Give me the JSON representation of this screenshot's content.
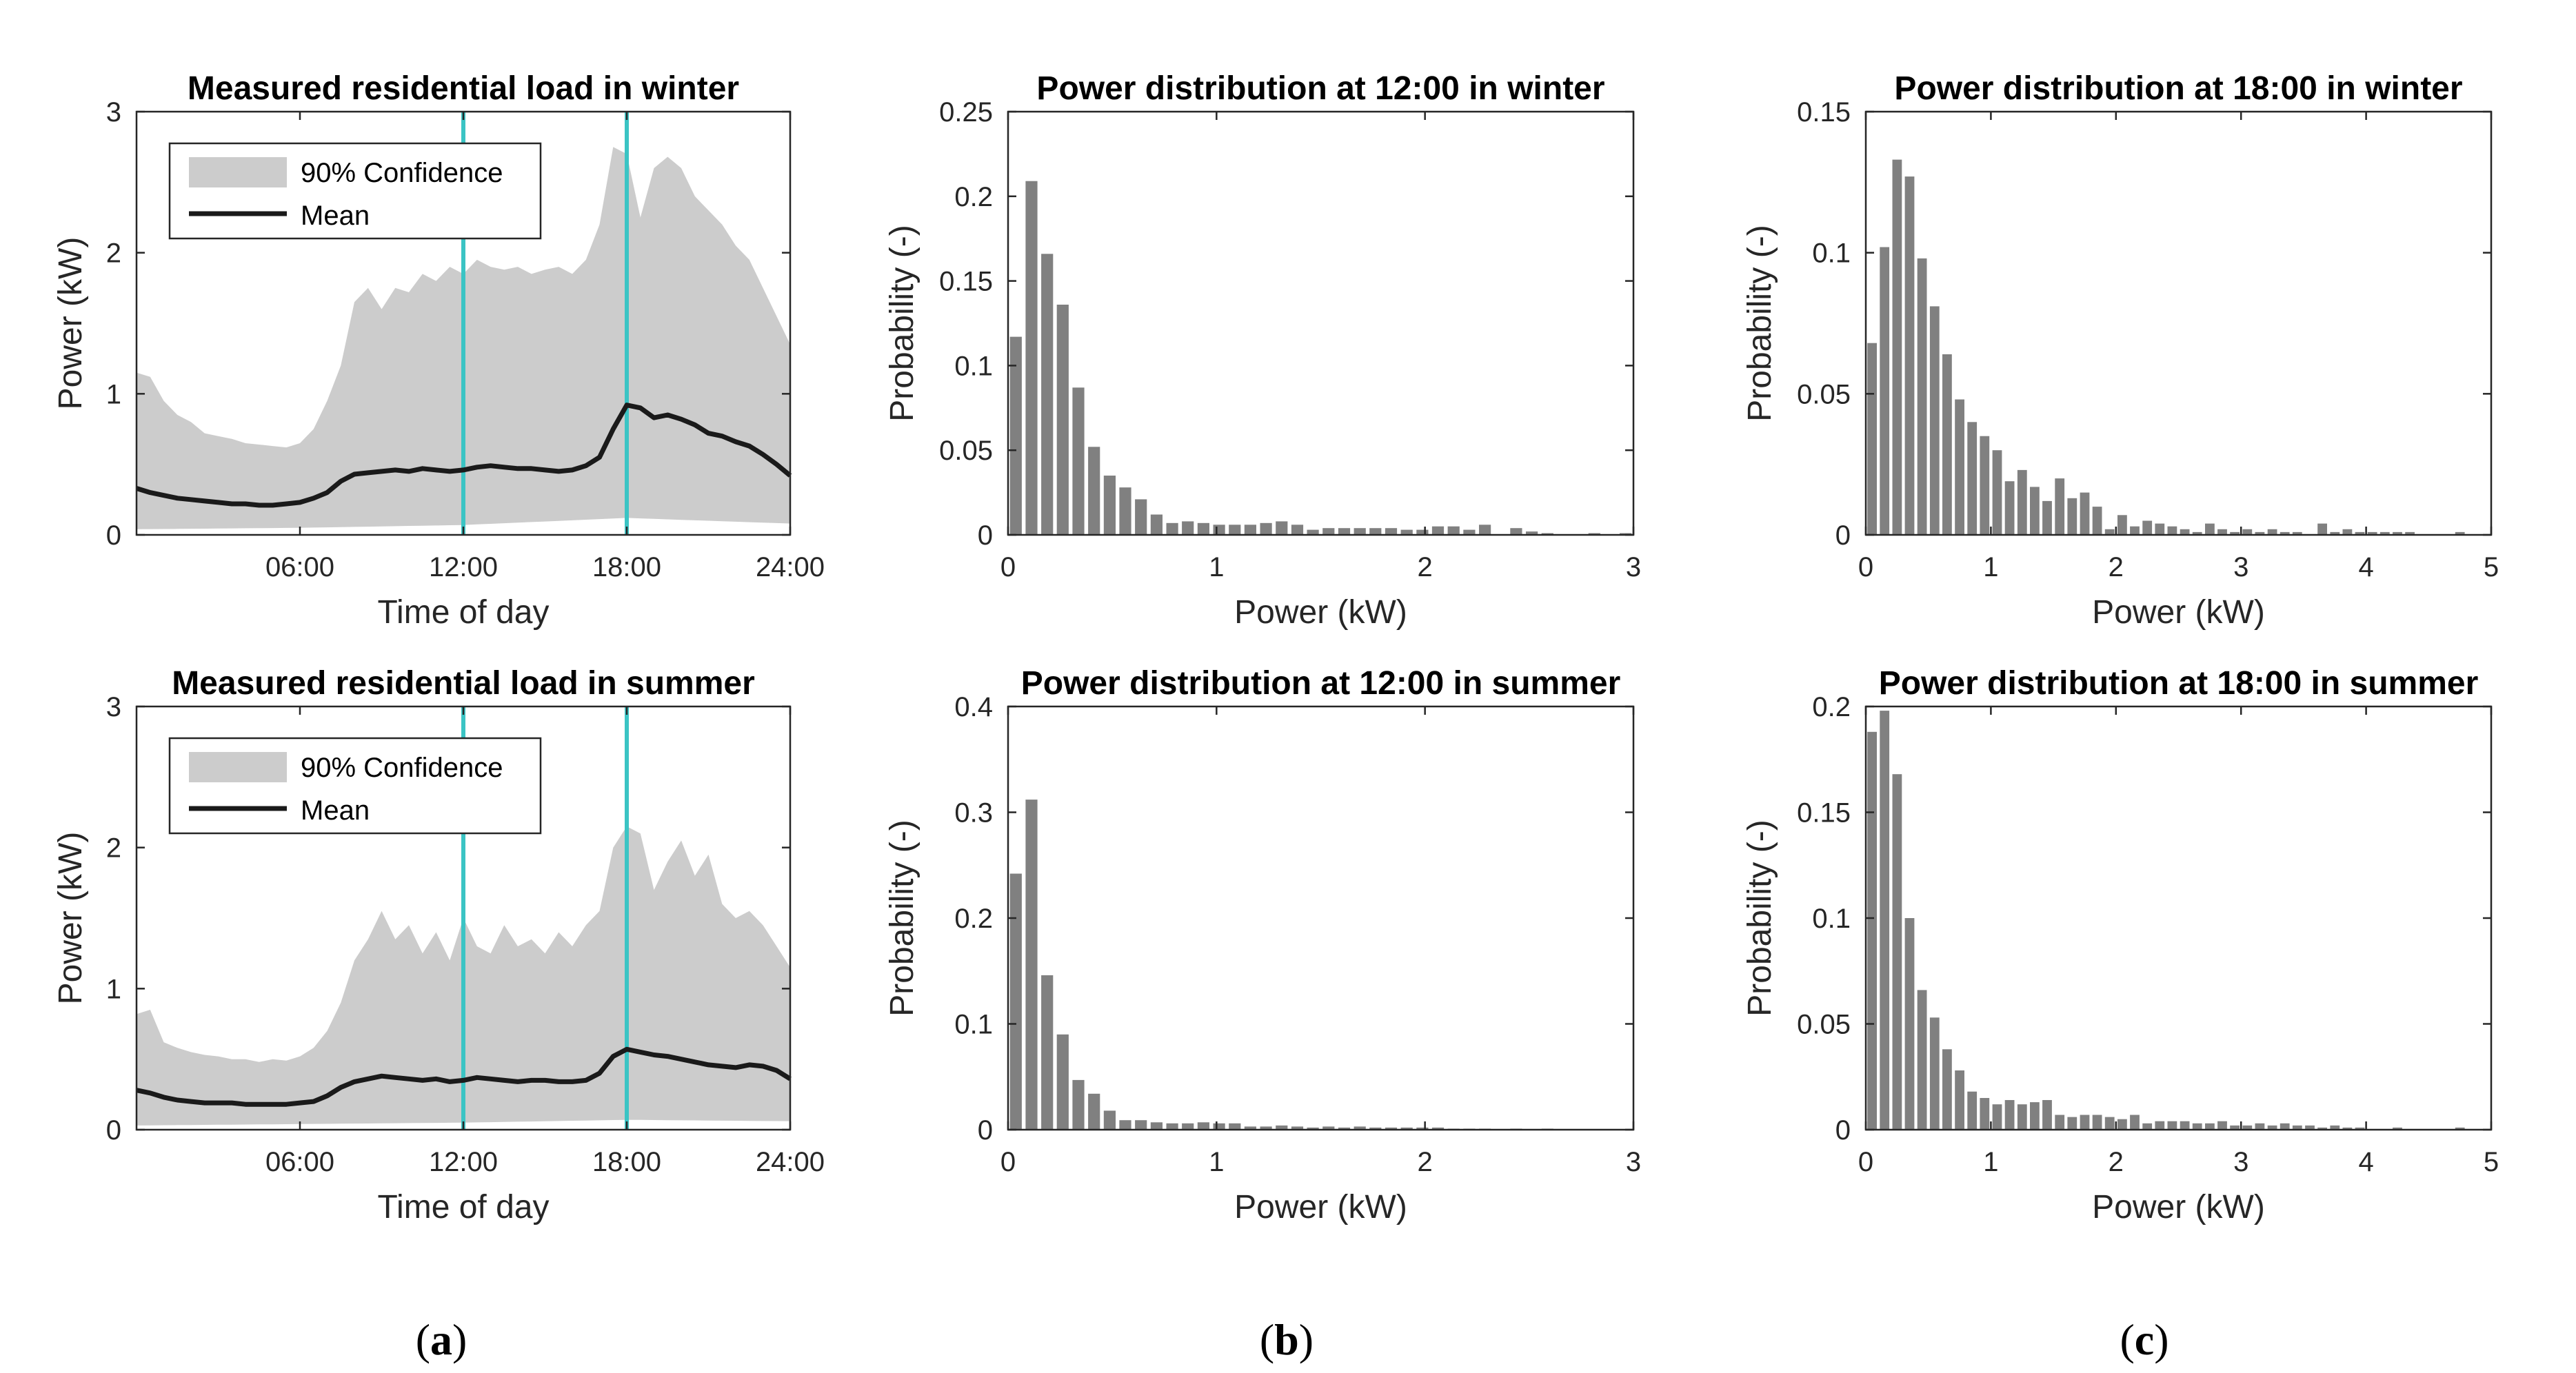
{
  "panels": [
    {
      "label": "a",
      "text": "(a)"
    },
    {
      "label": "b",
      "text": "(b)"
    },
    {
      "label": "c",
      "text": "(c)"
    }
  ],
  "chart_data": [
    {
      "id": "load-winter",
      "type": "area",
      "title": "Measured residential load in winter",
      "xlabel": "Time of day",
      "ylabel": "Power (kW)",
      "xlim": [
        0,
        24
      ],
      "ylim": [
        0,
        3
      ],
      "xticks": [
        6,
        12,
        18,
        24
      ],
      "xtick_labels": [
        "06:00",
        "12:00",
        "18:00",
        "24:00"
      ],
      "yticks": [
        0,
        1,
        2,
        3
      ],
      "vlines": [
        12,
        18
      ],
      "legend": {
        "position": "top-left",
        "entries": [
          "90% Confidence",
          "Mean"
        ]
      },
      "band_upper": {
        "x": [
          0,
          0.5,
          1,
          1.5,
          2,
          2.5,
          3,
          3.5,
          4,
          4.5,
          5,
          5.5,
          6,
          6.5,
          7,
          7.5,
          8,
          8.5,
          9,
          9.5,
          10,
          10.5,
          11,
          11.5,
          12,
          12.5,
          13,
          13.5,
          14,
          14.5,
          15,
          15.5,
          16,
          16.5,
          17,
          17.5,
          18,
          18.5,
          19,
          19.5,
          20,
          20.5,
          21,
          21.5,
          22,
          22.5,
          23,
          23.5,
          24
        ],
        "y": [
          1.15,
          1.12,
          0.95,
          0.85,
          0.8,
          0.72,
          0.7,
          0.68,
          0.65,
          0.64,
          0.63,
          0.62,
          0.65,
          0.75,
          0.95,
          1.2,
          1.65,
          1.75,
          1.6,
          1.75,
          1.72,
          1.85,
          1.8,
          1.9,
          1.85,
          1.95,
          1.9,
          1.88,
          1.9,
          1.85,
          1.88,
          1.9,
          1.85,
          1.95,
          2.2,
          2.75,
          2.7,
          2.25,
          2.6,
          2.68,
          2.6,
          2.4,
          2.3,
          2.2,
          2.05,
          1.95,
          1.75,
          1.55,
          1.35
        ]
      },
      "band_lower": {
        "x": [
          0,
          6,
          12,
          18,
          24
        ],
        "y": [
          0.04,
          0.05,
          0.07,
          0.12,
          0.08
        ]
      },
      "mean": {
        "x": [
          0,
          0.5,
          1,
          1.5,
          2,
          2.5,
          3,
          3.5,
          4,
          4.5,
          5,
          5.5,
          6,
          6.5,
          7,
          7.5,
          8,
          8.5,
          9,
          9.5,
          10,
          10.5,
          11,
          11.5,
          12,
          12.5,
          13,
          13.5,
          14,
          14.5,
          15,
          15.5,
          16,
          16.5,
          17,
          17.5,
          18,
          18.5,
          19,
          19.5,
          20,
          20.5,
          21,
          21.5,
          22,
          22.5,
          23,
          23.5,
          24
        ],
        "y": [
          0.33,
          0.3,
          0.28,
          0.26,
          0.25,
          0.24,
          0.23,
          0.22,
          0.22,
          0.21,
          0.21,
          0.22,
          0.23,
          0.26,
          0.3,
          0.38,
          0.43,
          0.44,
          0.45,
          0.46,
          0.45,
          0.47,
          0.46,
          0.45,
          0.46,
          0.48,
          0.49,
          0.48,
          0.47,
          0.47,
          0.46,
          0.45,
          0.46,
          0.49,
          0.55,
          0.75,
          0.92,
          0.9,
          0.83,
          0.85,
          0.82,
          0.78,
          0.72,
          0.7,
          0.66,
          0.63,
          0.57,
          0.5,
          0.42
        ]
      }
    },
    {
      "id": "dist-12-winter",
      "type": "bar",
      "title": "Power distribution at 12:00 in winter",
      "xlabel": "Power (kW)",
      "ylabel": "Probability (-)",
      "xlim": [
        0,
        3
      ],
      "ylim": [
        0,
        0.25
      ],
      "xticks": [
        0,
        1,
        2,
        3
      ],
      "yticks": [
        0,
        0.05,
        0.1,
        0.15,
        0.2,
        0.25
      ],
      "bin_width": 0.075,
      "values": [
        0.117,
        0.209,
        0.166,
        0.136,
        0.087,
        0.052,
        0.035,
        0.028,
        0.021,
        0.012,
        0.007,
        0.008,
        0.007,
        0.006,
        0.006,
        0.006,
        0.007,
        0.008,
        0.006,
        0.003,
        0.004,
        0.004,
        0.004,
        0.004,
        0.004,
        0.003,
        0.003,
        0.005,
        0.005,
        0.003,
        0.006,
        0,
        0.004,
        0.002,
        0.001,
        0,
        0,
        0.001,
        0,
        0.001
      ]
    },
    {
      "id": "dist-18-winter",
      "type": "bar",
      "title": "Power distribution at 18:00 in winter",
      "xlabel": "Power (kW)",
      "ylabel": "Probability (-)",
      "xlim": [
        0,
        5
      ],
      "ylim": [
        0,
        0.15
      ],
      "xticks": [
        0,
        1,
        2,
        3,
        4,
        5
      ],
      "yticks": [
        0,
        0.05,
        0.1,
        0.15
      ],
      "bin_width": 0.1,
      "values": [
        0.068,
        0.102,
        0.133,
        0.127,
        0.098,
        0.081,
        0.064,
        0.048,
        0.04,
        0.035,
        0.03,
        0.019,
        0.023,
        0.017,
        0.012,
        0.02,
        0.013,
        0.015,
        0.01,
        0.002,
        0.007,
        0.003,
        0.005,
        0.004,
        0.003,
        0.002,
        0.001,
        0.004,
        0.002,
        0.001,
        0.002,
        0.001,
        0.002,
        0.001,
        0.001,
        0,
        0.004,
        0.001,
        0.002,
        0.001,
        0.001,
        0.001,
        0.001,
        0.001,
        0,
        0,
        0,
        0.001,
        0,
        0
      ]
    },
    {
      "id": "load-summer",
      "type": "area",
      "title": "Measured residential load in summer",
      "xlabel": "Time of day",
      "ylabel": "Power (kW)",
      "xlim": [
        0,
        24
      ],
      "ylim": [
        0,
        3
      ],
      "xticks": [
        6,
        12,
        18,
        24
      ],
      "xtick_labels": [
        "06:00",
        "12:00",
        "18:00",
        "24:00"
      ],
      "yticks": [
        0,
        1,
        2,
        3
      ],
      "vlines": [
        12,
        18
      ],
      "legend": {
        "position": "top-left",
        "entries": [
          "90% Confidence",
          "Mean"
        ]
      },
      "band_upper": {
        "x": [
          0,
          0.5,
          1,
          1.5,
          2,
          2.5,
          3,
          3.5,
          4,
          4.5,
          5,
          5.5,
          6,
          6.5,
          7,
          7.5,
          8,
          8.5,
          9,
          9.5,
          10,
          10.5,
          11,
          11.5,
          12,
          12.5,
          13,
          13.5,
          14,
          14.5,
          15,
          15.5,
          16,
          16.5,
          17,
          17.5,
          18,
          18.5,
          19,
          19.5,
          20,
          20.5,
          21,
          21.5,
          22,
          22.5,
          23,
          23.5,
          24
        ],
        "y": [
          0.82,
          0.85,
          0.62,
          0.58,
          0.55,
          0.53,
          0.52,
          0.5,
          0.5,
          0.48,
          0.5,
          0.49,
          0.52,
          0.58,
          0.7,
          0.9,
          1.2,
          1.35,
          1.55,
          1.35,
          1.45,
          1.25,
          1.4,
          1.2,
          1.5,
          1.3,
          1.25,
          1.45,
          1.3,
          1.35,
          1.25,
          1.4,
          1.3,
          1.45,
          1.55,
          2.0,
          2.15,
          2.1,
          1.7,
          1.9,
          2.05,
          1.8,
          1.95,
          1.6,
          1.5,
          1.55,
          1.45,
          1.3,
          1.15
        ]
      },
      "band_lower": {
        "x": [
          0,
          6,
          12,
          18,
          24
        ],
        "y": [
          0.03,
          0.04,
          0.05,
          0.07,
          0.06
        ]
      },
      "mean": {
        "x": [
          0,
          0.5,
          1,
          1.5,
          2,
          2.5,
          3,
          3.5,
          4,
          4.5,
          5,
          5.5,
          6,
          6.5,
          7,
          7.5,
          8,
          8.5,
          9,
          9.5,
          10,
          10.5,
          11,
          11.5,
          12,
          12.5,
          13,
          13.5,
          14,
          14.5,
          15,
          15.5,
          16,
          16.5,
          17,
          17.5,
          18,
          18.5,
          19,
          19.5,
          20,
          20.5,
          21,
          21.5,
          22,
          22.5,
          23,
          23.5,
          24
        ],
        "y": [
          0.28,
          0.26,
          0.23,
          0.21,
          0.2,
          0.19,
          0.19,
          0.19,
          0.18,
          0.18,
          0.18,
          0.18,
          0.19,
          0.2,
          0.24,
          0.3,
          0.34,
          0.36,
          0.38,
          0.37,
          0.36,
          0.35,
          0.36,
          0.34,
          0.35,
          0.37,
          0.36,
          0.35,
          0.34,
          0.35,
          0.35,
          0.34,
          0.34,
          0.35,
          0.4,
          0.52,
          0.57,
          0.55,
          0.53,
          0.52,
          0.5,
          0.48,
          0.46,
          0.45,
          0.44,
          0.46,
          0.45,
          0.42,
          0.36
        ]
      }
    },
    {
      "id": "dist-12-summer",
      "type": "bar",
      "title": "Power distribution at 12:00 in summer",
      "xlabel": "Power (kW)",
      "ylabel": "Probability (-)",
      "xlim": [
        0,
        3
      ],
      "ylim": [
        0,
        0.4
      ],
      "xticks": [
        0,
        1,
        2,
        3
      ],
      "yticks": [
        0,
        0.1,
        0.2,
        0.3,
        0.4
      ],
      "bin_width": 0.075,
      "values": [
        0.242,
        0.312,
        0.146,
        0.09,
        0.047,
        0.034,
        0.018,
        0.009,
        0.009,
        0.007,
        0.006,
        0.006,
        0.007,
        0.006,
        0.006,
        0.003,
        0.003,
        0.004,
        0.003,
        0.002,
        0.003,
        0.002,
        0.003,
        0.002,
        0.002,
        0.002,
        0.002,
        0.002,
        0.001,
        0.001,
        0.001,
        0,
        0.001,
        0,
        0.001,
        0,
        0,
        0,
        0,
        0
      ]
    },
    {
      "id": "dist-18-summer",
      "type": "bar",
      "title": "Power distribution at 18:00 in summer",
      "xlabel": "Power (kW)",
      "ylabel": "Probability (-)",
      "xlim": [
        0,
        5
      ],
      "ylim": [
        0,
        0.2
      ],
      "xticks": [
        0,
        1,
        2,
        3,
        4,
        5
      ],
      "yticks": [
        0,
        0.05,
        0.1,
        0.15,
        0.2
      ],
      "bin_width": 0.1,
      "values": [
        0.188,
        0.198,
        0.168,
        0.1,
        0.066,
        0.053,
        0.038,
        0.028,
        0.018,
        0.015,
        0.012,
        0.014,
        0.012,
        0.013,
        0.014,
        0.007,
        0.006,
        0.007,
        0.007,
        0.006,
        0.005,
        0.007,
        0.003,
        0.004,
        0.004,
        0.004,
        0.003,
        0.003,
        0.004,
        0.002,
        0.002,
        0.003,
        0.002,
        0.003,
        0.002,
        0.002,
        0.001,
        0.002,
        0.001,
        0.001,
        0,
        0,
        0.001,
        0,
        0,
        0,
        0,
        0.001,
        0,
        0
      ]
    }
  ],
  "colors": {
    "band": "#cccccc",
    "mean": "#1a1a1a",
    "vline": "#3bc4c4",
    "bar": "#808080",
    "axis": "#262626",
    "legend_bg": "#ffffff"
  }
}
